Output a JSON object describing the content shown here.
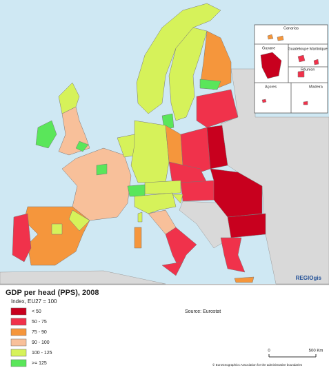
{
  "inset": {
    "labels": [
      "Canarias",
      "Guyane",
      "Guadeloupe Martinique",
      "Réunion",
      "Açores",
      "Madeira"
    ]
  },
  "credit": "REGIOgis",
  "legend": {
    "title": "GDP per head (PPS), 2008",
    "subtitle": "Index, EU27 = 100",
    "items": [
      {
        "label": "< 50",
        "color": "#c8001e"
      },
      {
        "label": "50 - 75",
        "color": "#f0324b"
      },
      {
        "label": "75 - 90",
        "color": "#f5963c"
      },
      {
        "label": "90 - 100",
        "color": "#f8c09a"
      },
      {
        "label": "100 - 125",
        "color": "#d6f25a"
      },
      {
        "label": ">= 125",
        "color": "#5ae65a"
      }
    ]
  },
  "source": "Source: Eurostat",
  "scale": {
    "labels": [
      "0",
      "500 Km"
    ]
  },
  "copyright": "© EuroGeographics Association for the administrative boundaries"
}
